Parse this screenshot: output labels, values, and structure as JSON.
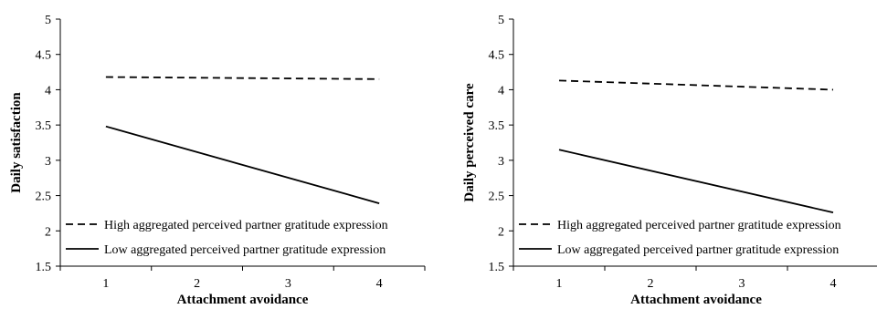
{
  "chart_data": [
    {
      "type": "line",
      "xlabel": "Attachment avoidance",
      "ylabel": "Daily satisfaction",
      "x": [
        1,
        4
      ],
      "xticks": [
        "1",
        "2",
        "3",
        "4"
      ],
      "xlim": [
        0.5,
        4.5
      ],
      "ylim": [
        1.5,
        5
      ],
      "yticks": [
        "1.5",
        "2",
        "2.5",
        "3",
        "3.5",
        "4",
        "4.5",
        "5"
      ],
      "grid": false,
      "legend_position": "bottom-left",
      "series": [
        {
          "name": "High aggregated perceived partner gratitude expression",
          "style": "dashed",
          "values": [
            4.18,
            4.15
          ]
        },
        {
          "name": "Low aggregated perceived partner gratitude expression",
          "style": "solid",
          "values": [
            3.48,
            2.39
          ]
        }
      ]
    },
    {
      "type": "line",
      "xlabel": "Attachment avoidance",
      "ylabel": "Daily perceived care",
      "x": [
        1,
        4
      ],
      "xticks": [
        "1",
        "2",
        "3",
        "4"
      ],
      "xlim": [
        0.5,
        4.5
      ],
      "ylim": [
        1.5,
        5
      ],
      "yticks": [
        "1.5",
        "2",
        "2.5",
        "3",
        "3.5",
        "4",
        "4.5",
        "5"
      ],
      "grid": false,
      "legend_position": "bottom-left",
      "series": [
        {
          "name": "High aggregated perceived partner gratitude expression",
          "style": "dashed",
          "values": [
            4.13,
            4.0
          ]
        },
        {
          "name": "Low aggregated perceived partner gratitude expression",
          "style": "solid",
          "values": [
            3.15,
            2.26
          ]
        }
      ]
    }
  ]
}
